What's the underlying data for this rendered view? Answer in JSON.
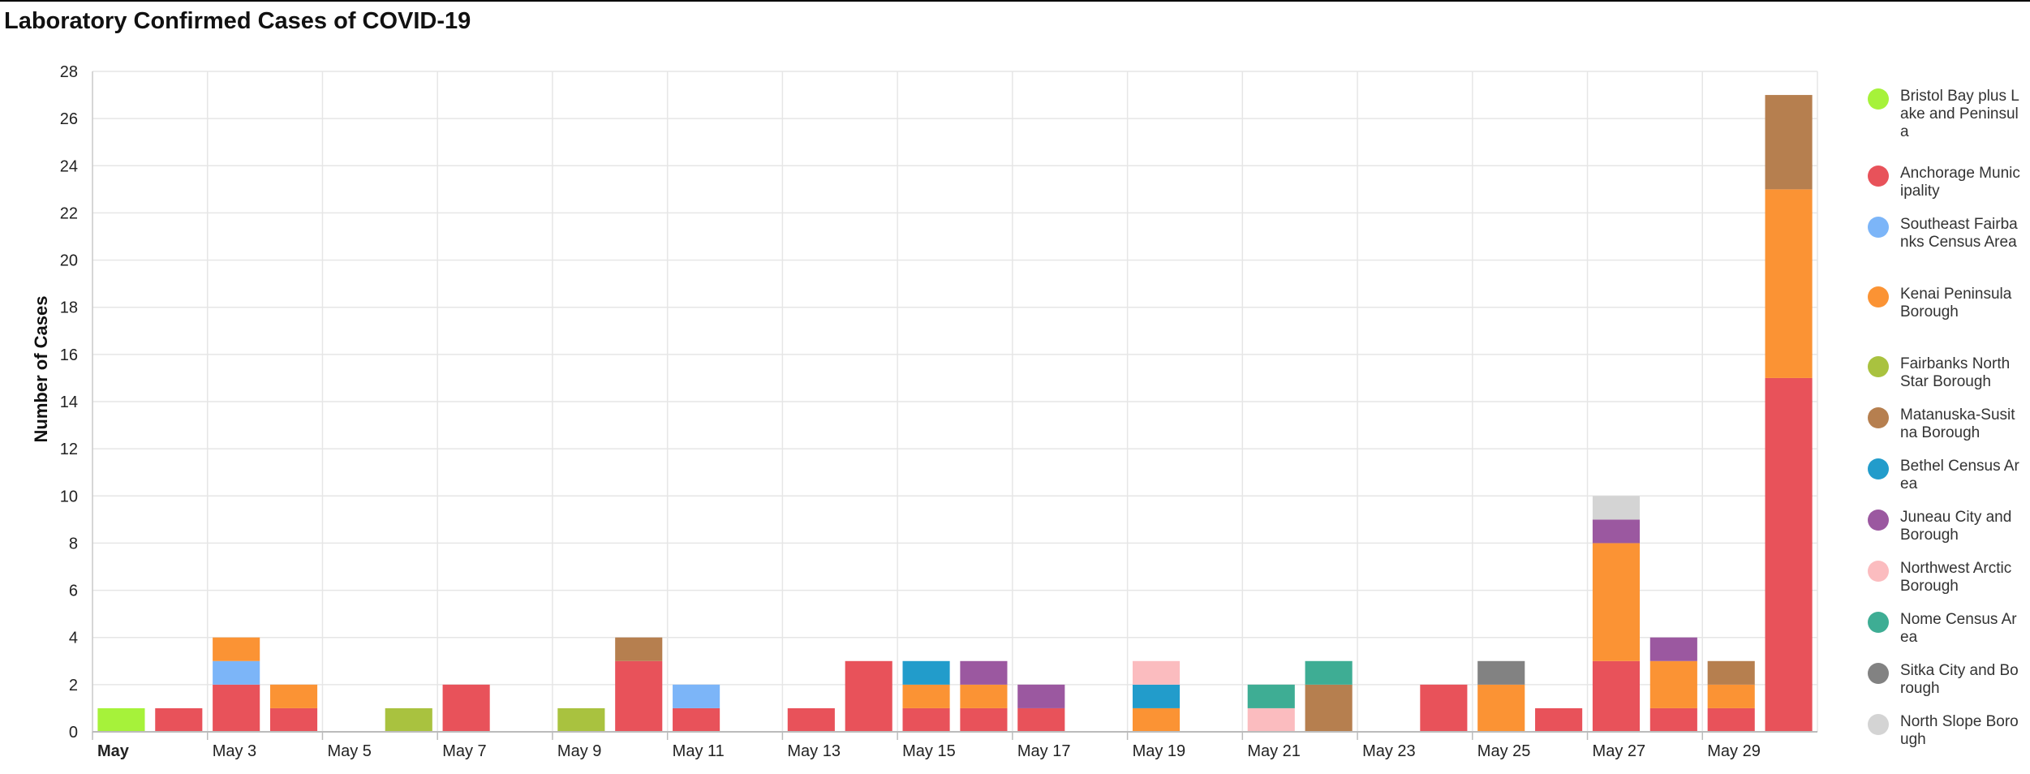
{
  "chart_data": {
    "type": "bar",
    "stacked": true,
    "title": "Laboratory Confirmed Cases of COVID-19",
    "xlabel": "",
    "ylabel": "Number of Cases",
    "ylim": [
      0,
      28
    ],
    "yticks": [
      0,
      2,
      4,
      6,
      8,
      10,
      12,
      14,
      16,
      18,
      20,
      22,
      24,
      26,
      28
    ],
    "grid": true,
    "legend_position": "right",
    "categories": [
      "May 1",
      "May 2",
      "May 3",
      "May 4",
      "May 5",
      "May 6",
      "May 7",
      "May 8",
      "May 9",
      "May 10",
      "May 11",
      "May 12",
      "May 13",
      "May 14",
      "May 15",
      "May 16",
      "May 17",
      "May 18",
      "May 19",
      "May 20",
      "May 21",
      "May 22",
      "May 23",
      "May 24",
      "May 25",
      "May 26",
      "May 27",
      "May 28",
      "May 29",
      "May 30"
    ],
    "x_tick_labels": [
      {
        "day": 1,
        "label": "May",
        "bold": true
      },
      {
        "day": 3,
        "label": "May 3"
      },
      {
        "day": 5,
        "label": "May 5"
      },
      {
        "day": 7,
        "label": "May 7"
      },
      {
        "day": 9,
        "label": "May 9"
      },
      {
        "day": 11,
        "label": "May 11"
      },
      {
        "day": 13,
        "label": "May 13"
      },
      {
        "day": 15,
        "label": "May 15"
      },
      {
        "day": 17,
        "label": "May 17"
      },
      {
        "day": 19,
        "label": "May 19"
      },
      {
        "day": 21,
        "label": "May 21"
      },
      {
        "day": 23,
        "label": "May 23"
      },
      {
        "day": 25,
        "label": "May 25"
      },
      {
        "day": 27,
        "label": "May 27"
      },
      {
        "day": 29,
        "label": "May 29"
      }
    ],
    "series": [
      {
        "name": "Bristol Bay plus Lake and Peninsula",
        "color": "#a6f23a",
        "values": [
          1,
          0,
          0,
          0,
          0,
          0,
          0,
          0,
          0,
          0,
          0,
          0,
          0,
          0,
          0,
          0,
          0,
          0,
          0,
          0,
          0,
          0,
          0,
          0,
          0,
          0,
          0,
          0,
          0,
          0
        ]
      },
      {
        "name": "Anchorage Municipality",
        "color": "#e8525a",
        "values": [
          0,
          1,
          2,
          1,
          0,
          0,
          2,
          0,
          0,
          3,
          1,
          0,
          1,
          3,
          1,
          1,
          1,
          0,
          0,
          0,
          0,
          0,
          0,
          2,
          0,
          1,
          3,
          1,
          1,
          15
        ]
      },
      {
        "name": "Southeast Fairbanks Census Area",
        "color": "#7cb5f8",
        "values": [
          0,
          0,
          1,
          0,
          0,
          0,
          0,
          0,
          0,
          0,
          1,
          0,
          0,
          0,
          0,
          0,
          0,
          0,
          0,
          0,
          0,
          0,
          0,
          0,
          0,
          0,
          0,
          0,
          0,
          0
        ]
      },
      {
        "name": "Kenai Peninsula Borough",
        "color": "#fb9334",
        "values": [
          0,
          0,
          1,
          1,
          0,
          0,
          0,
          0,
          0,
          0,
          0,
          0,
          0,
          0,
          1,
          1,
          0,
          0,
          1,
          0,
          0,
          0,
          0,
          0,
          2,
          0,
          5,
          2,
          1,
          8
        ]
      },
      {
        "name": "Fairbanks North Star Borough",
        "color": "#a9c23f",
        "values": [
          0,
          0,
          0,
          0,
          0,
          1,
          0,
          0,
          1,
          0,
          0,
          0,
          0,
          0,
          0,
          0,
          0,
          0,
          0,
          0,
          0,
          0,
          0,
          0,
          0,
          0,
          0,
          0,
          0,
          0
        ]
      },
      {
        "name": "Matanuska-Susitna Borough",
        "color": "#b67f4f",
        "values": [
          0,
          0,
          0,
          0,
          0,
          0,
          0,
          0,
          0,
          1,
          0,
          0,
          0,
          0,
          0,
          0,
          0,
          0,
          0,
          0,
          0,
          2,
          0,
          0,
          0,
          0,
          0,
          0,
          1,
          4
        ]
      },
      {
        "name": "Bethel Census Area",
        "color": "#229ccb",
        "values": [
          0,
          0,
          0,
          0,
          0,
          0,
          0,
          0,
          0,
          0,
          0,
          0,
          0,
          0,
          1,
          0,
          0,
          0,
          1,
          0,
          0,
          0,
          0,
          0,
          0,
          0,
          0,
          0,
          0,
          0
        ]
      },
      {
        "name": "Juneau City and Borough",
        "color": "#9b58a0",
        "values": [
          0,
          0,
          0,
          0,
          0,
          0,
          0,
          0,
          0,
          0,
          0,
          0,
          0,
          0,
          0,
          1,
          1,
          0,
          0,
          0,
          0,
          0,
          0,
          0,
          0,
          0,
          1,
          1,
          0,
          0
        ]
      },
      {
        "name": "Northwest Arctic Borough",
        "color": "#fbbcbf",
        "values": [
          0,
          0,
          0,
          0,
          0,
          0,
          0,
          0,
          0,
          0,
          0,
          0,
          0,
          0,
          0,
          0,
          0,
          0,
          1,
          0,
          1,
          0,
          0,
          0,
          0,
          0,
          0,
          0,
          0,
          0
        ]
      },
      {
        "name": "Nome Census Area",
        "color": "#3ead94",
        "values": [
          0,
          0,
          0,
          0,
          0,
          0,
          0,
          0,
          0,
          0,
          0,
          0,
          0,
          0,
          0,
          0,
          0,
          0,
          0,
          0,
          1,
          1,
          0,
          0,
          0,
          0,
          0,
          0,
          0,
          0
        ]
      },
      {
        "name": "Sitka City and Borough",
        "color": "#828282",
        "values": [
          0,
          0,
          0,
          0,
          0,
          0,
          0,
          0,
          0,
          0,
          0,
          0,
          0,
          0,
          0,
          0,
          0,
          0,
          0,
          0,
          0,
          0,
          0,
          0,
          1,
          0,
          0,
          0,
          0,
          0
        ]
      },
      {
        "name": "North Slope Borough",
        "color": "#d4d4d4",
        "values": [
          0,
          0,
          0,
          0,
          0,
          0,
          0,
          0,
          0,
          0,
          0,
          0,
          0,
          0,
          0,
          0,
          0,
          0,
          0,
          0,
          0,
          0,
          0,
          0,
          0,
          0,
          1,
          0,
          0,
          0
        ]
      }
    ]
  }
}
